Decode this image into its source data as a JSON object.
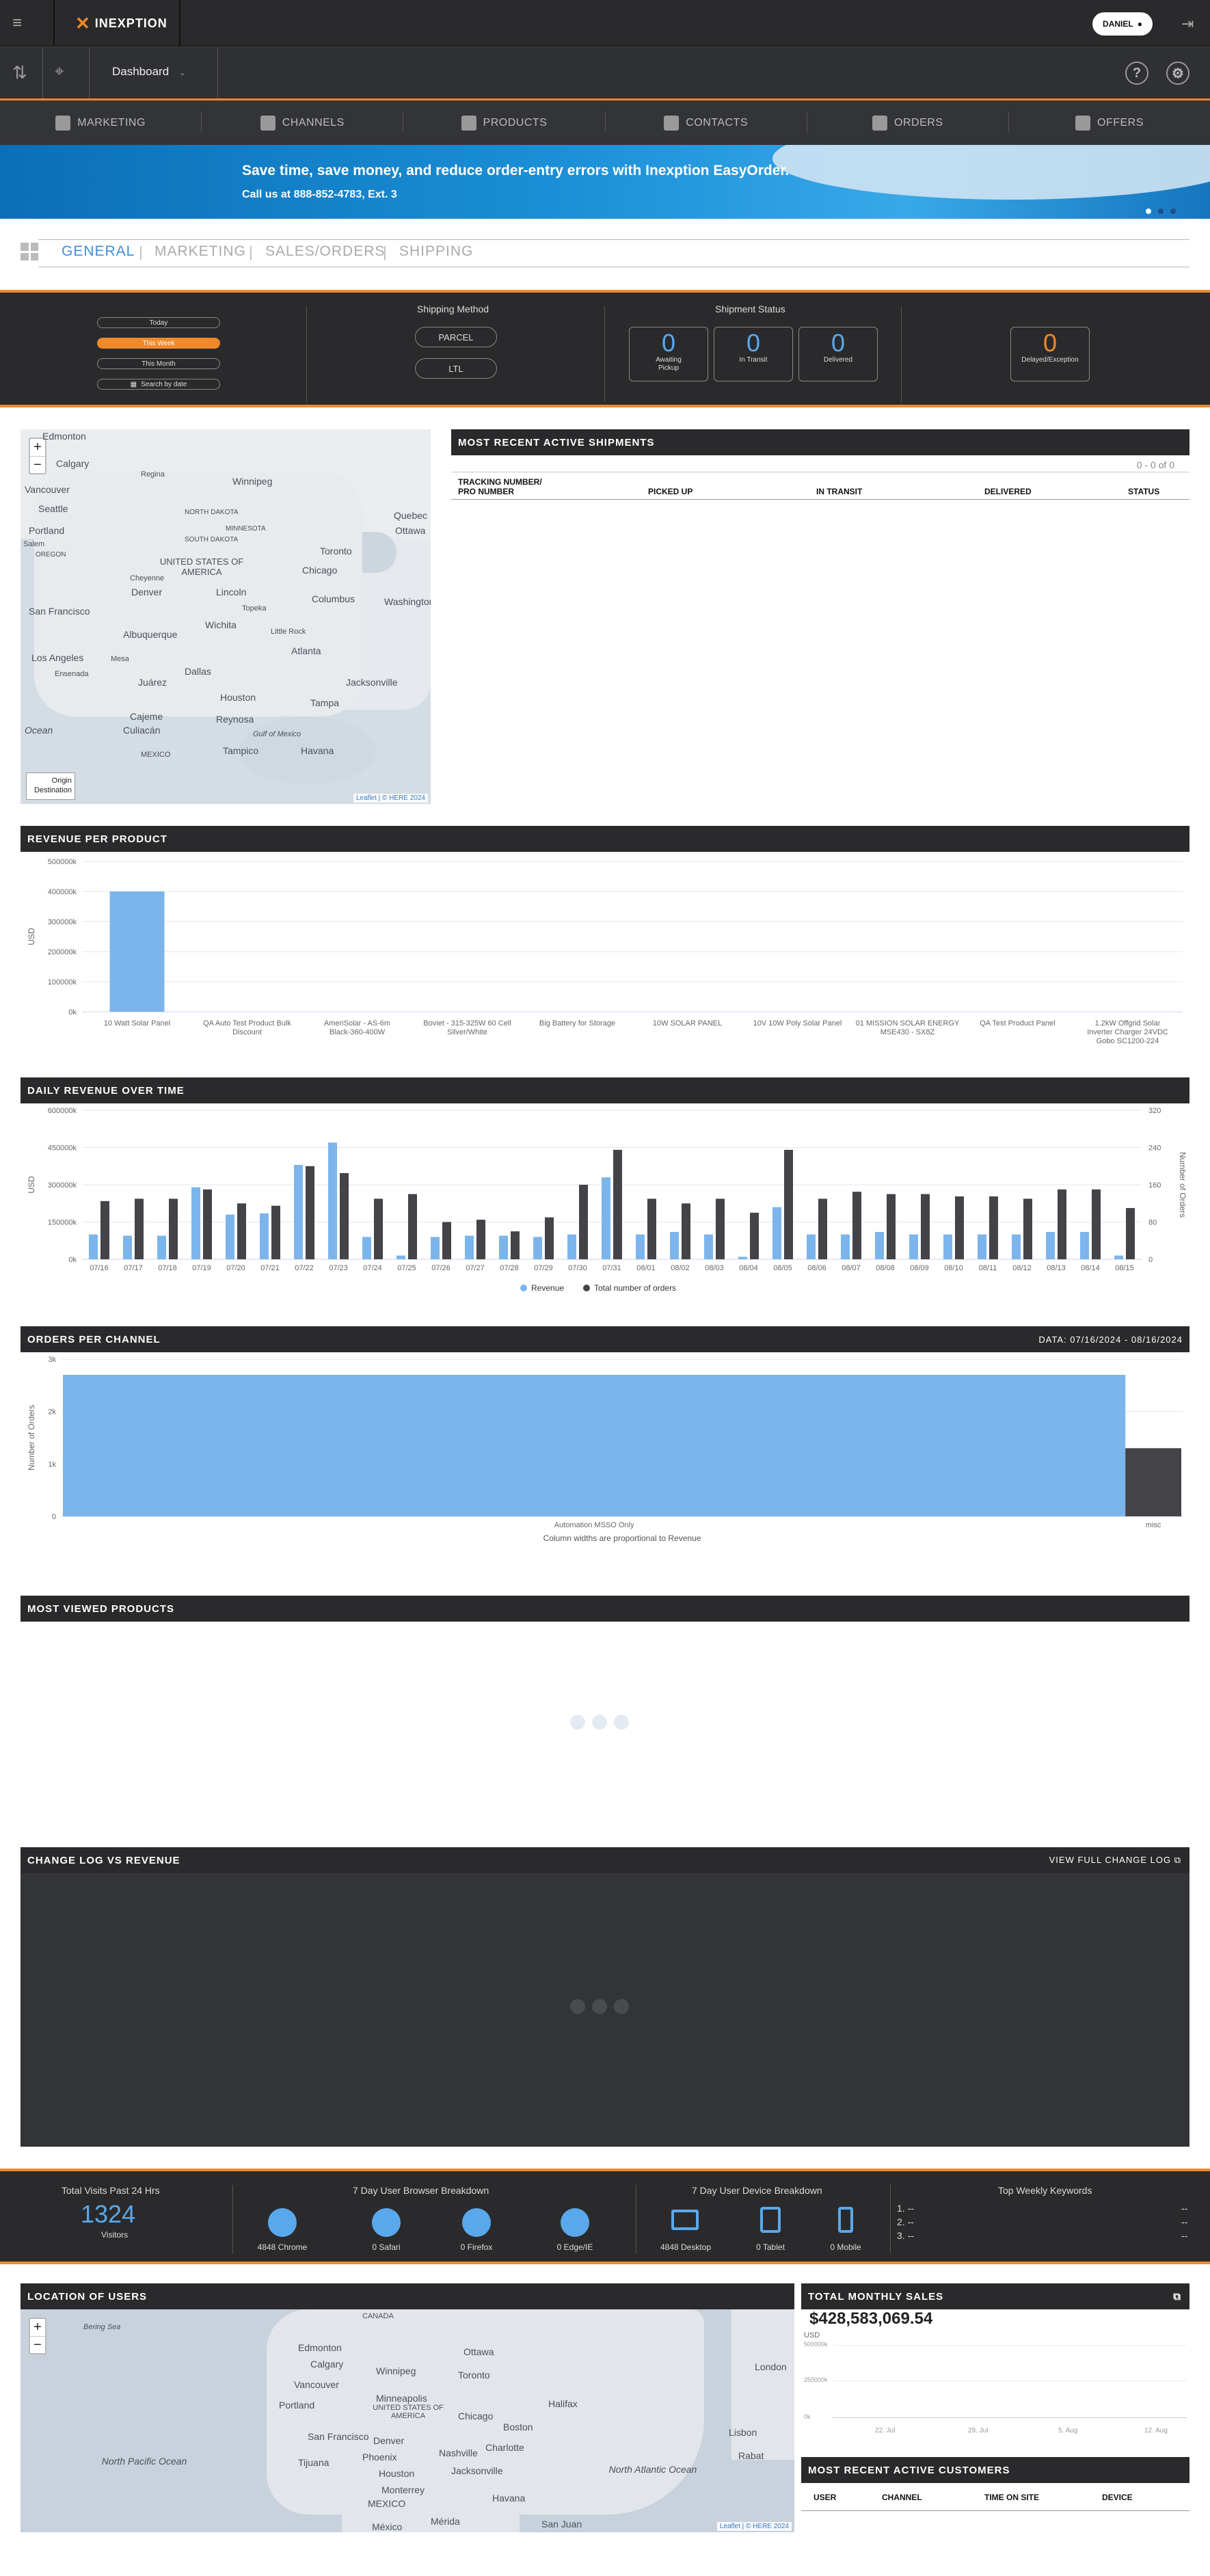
{
  "topbar": {
    "brand": "INEXPTION",
    "user": "DANIEL"
  },
  "subbar": {
    "dashboard_label": "Dashboard",
    "help": "?"
  },
  "nav": {
    "items": [
      "MARKETING",
      "CHANNELS",
      "PRODUCTS",
      "CONTACTS",
      "ORDERS",
      "OFFERS"
    ]
  },
  "banner": {
    "headline": "Save time, save money, and reduce order-entry errors with Inexption EasyOrder.",
    "subline": "Call us at 888-852-4783, Ext. 3"
  },
  "tabs": [
    "GENERAL",
    "MARKETING",
    "SALES/ORDERS",
    "SHIPPING"
  ],
  "filters": {
    "dates": [
      "Today",
      "This Week",
      "This Month",
      "Search by date"
    ],
    "active_date": "This Week",
    "shipping_method_label": "Shipping Method",
    "shipping_methods": [
      "PARCEL",
      "LTL"
    ],
    "shipment_status_label": "Shipment Status",
    "statuses": [
      {
        "count": "0",
        "label": "Awaiting Pickup"
      },
      {
        "count": "0",
        "label": "In Transit"
      },
      {
        "count": "0",
        "label": "Delivered"
      }
    ],
    "delayed": {
      "count": "0",
      "label": "Delayed/Exception"
    }
  },
  "shipments_map": {
    "labels": [
      "Edmonton",
      "Calgary",
      "Regina",
      "Winnipeg",
      "Vancouver",
      "Seattle",
      "Portland",
      "Salem",
      "OREGON",
      "NORTH DAKOTA",
      "MINNESOTA",
      "SOUTH DAKOTA",
      "Quebec",
      "Ottawa",
      "Toronto",
      "Chicago",
      "UNITED STATES OF AMERICA",
      "Denver",
      "Cheyenne",
      "Lincoln",
      "Columbus",
      "Washington",
      "San Francisco",
      "Wichita",
      "Topeka",
      "Little Rock",
      "Albuquerque",
      "Atlanta",
      "Los Angeles",
      "Mesa",
      "Dallas",
      "Jacksonville",
      "Ensenada",
      "Juárez",
      "Houston",
      "Tampa",
      "Cajeme",
      "Culiacán",
      "Reynosa",
      "Gulf of Mexico",
      "Tampico",
      "Havana",
      "MEXICO",
      "Ocean"
    ],
    "legend": [
      "Origin",
      "Destination"
    ],
    "attribution": "Leaflet | © HERE 2024"
  },
  "shipments": {
    "title": "MOST RECENT ACTIVE SHIPMENTS",
    "paging": "0 - 0 of 0",
    "columns": [
      "TRACKING NUMBER/ PRO NUMBER",
      "PICKED UP",
      "IN TRANSIT",
      "DELIVERED",
      "STATUS"
    ]
  },
  "revenue_per_product": {
    "title": "REVENUE PER PRODUCT",
    "chart_data": {
      "type": "bar",
      "ylabel": "USD",
      "ylim": [
        0,
        500000
      ],
      "yticks": [
        "0k",
        "100000k",
        "200000k",
        "300000k",
        "400000k",
        "500000k"
      ],
      "categories": [
        "10 Watt Solar Panel",
        "QA Auto Test Product Bulk Discount",
        "AmeriSolar - AS-6m Black-360-400W",
        "Boviet - 315-325W 60 Cell Silver/White",
        "Big Battery for Storage",
        "10W SOLAR PANEL",
        "10V 10W Poly Solar Panel",
        "01 MISSION SOLAR ENERGY MSE430 - SX8Z",
        "QA Test Product Panel",
        "1.2kW Offgrid Solar Inverter Charger 24VDC Gobo SC1200-224"
      ],
      "values": [
        400000,
        0,
        0,
        0,
        0,
        0,
        0,
        0,
        0,
        0
      ]
    }
  },
  "daily_revenue": {
    "title": "DAILY REVENUE OVER TIME",
    "chart_data": {
      "type": "bar",
      "ylabel": "USD",
      "ylabel_right": "Number of Orders",
      "ylim": [
        0,
        600000
      ],
      "ylim_right": [
        0,
        320
      ],
      "yticks": [
        "0k",
        "150000k",
        "300000k",
        "450000k",
        "600000k"
      ],
      "yticks_right": [
        "0",
        "80",
        "160",
        "240",
        "320"
      ],
      "categories": [
        "07/16",
        "07/17",
        "07/18",
        "07/19",
        "07/20",
        "07/21",
        "07/22",
        "07/23",
        "07/24",
        "07/25",
        "07/26",
        "07/27",
        "07/28",
        "07/29",
        "07/30",
        "07/31",
        "08/01",
        "08/02",
        "08/03",
        "08/04",
        "08/05",
        "08/06",
        "08/07",
        "08/08",
        "08/09",
        "08/10",
        "08/11",
        "08/12",
        "08/13",
        "08/14",
        "08/15"
      ],
      "series": [
        {
          "name": "Revenue",
          "color": "#7cb5ec",
          "values": [
            100000,
            95000,
            95000,
            290000,
            180000,
            185000,
            380000,
            470000,
            90000,
            15000,
            90000,
            95000,
            95000,
            90000,
            100000,
            330000,
            100000,
            110000,
            100000,
            10000,
            210000,
            100000,
            100000,
            110000,
            100000,
            100000,
            100000,
            100000,
            110000,
            110000,
            15000
          ]
        },
        {
          "name": "Total number of orders",
          "color": "#434348",
          "values": [
            125,
            130,
            130,
            150,
            120,
            115,
            200,
            185,
            130,
            140,
            80,
            85,
            60,
            90,
            160,
            235,
            130,
            120,
            130,
            100,
            235,
            130,
            145,
            140,
            140,
            135,
            135,
            130,
            150,
            150,
            110
          ]
        }
      ]
    }
  },
  "orders_per_channel": {
    "title": "ORDERS PER CHANNEL",
    "date_range": "DATA: 07/16/2024 - 08/16/2024",
    "chart_data": {
      "type": "bar",
      "ylabel": "Number of Orders",
      "ylim": [
        0,
        3000
      ],
      "yticks": [
        "0",
        "1k",
        "2k",
        "3k"
      ],
      "categories": [
        "Automation MSSO Only",
        "misc"
      ],
      "values": [
        2700,
        1300
      ],
      "revenue_share": [
        0.95,
        0.05
      ],
      "note": "Column widths are proportional to Revenue"
    }
  },
  "most_viewed": {
    "title": "MOST VIEWED PRODUCTS"
  },
  "changelog": {
    "title": "CHANGE LOG VS REVENUE",
    "link": "VIEW FULL CHANGE LOG"
  },
  "stats": {
    "visits_title": "Total Visits Past 24 Hrs",
    "visits": "1324",
    "visits_label": "Visitors",
    "browser_title": "7 Day User Browser Breakdown",
    "browsers": [
      "4848 Chrome",
      "0 Safari",
      "0 Firefox",
      "0 Edge/IE"
    ],
    "device_title": "7 Day User Device Breakdown",
    "devices": [
      "4848 Desktop",
      "0 Tablet",
      "0 Mobile"
    ],
    "keywords_title": "Top Weekly Keywords",
    "keywords": [
      "1. --",
      "2. --",
      "3. --"
    ],
    "keyword_counts": [
      "--",
      "--",
      "--"
    ]
  },
  "users_map": {
    "title": "LOCATION OF USERS",
    "labels": [
      "CANADA",
      "Bering Sea",
      "Edmonton",
      "Calgary",
      "Winnipeg",
      "Vancouver",
      "Portland",
      "Ottawa",
      "Toronto",
      "Minneapolis",
      "UNITED STATES OF AMERICA",
      "Chicago",
      "Boston",
      "Halifax",
      "San Francisco",
      "Denver",
      "Phoenix",
      "Nashville",
      "Charlotte",
      "Tijuana",
      "Houston",
      "Jacksonville",
      "Monterrey",
      "MEXICO",
      "Havana",
      "Mérida",
      "San Juan",
      "México",
      "London",
      "Lisbon",
      "Rabat",
      "North Pacific Ocean",
      "North Atlantic Ocean"
    ],
    "attribution": "Leaflet | © HERE 2024"
  },
  "monthly_sales": {
    "title": "TOTAL MONTHLY SALES",
    "total": "$428,583,069.54",
    "ylabel": "USD",
    "yticks": [
      "500000k",
      "250000k",
      "0k"
    ],
    "xticks": [
      "22. Jul",
      "29. Jul",
      "5. Aug",
      "12. Aug"
    ]
  },
  "customers": {
    "title": "MOST RECENT ACTIVE CUSTOMERS",
    "columns": [
      "USER",
      "CHANNEL",
      "TIME ON SITE",
      "DEVICE"
    ]
  }
}
